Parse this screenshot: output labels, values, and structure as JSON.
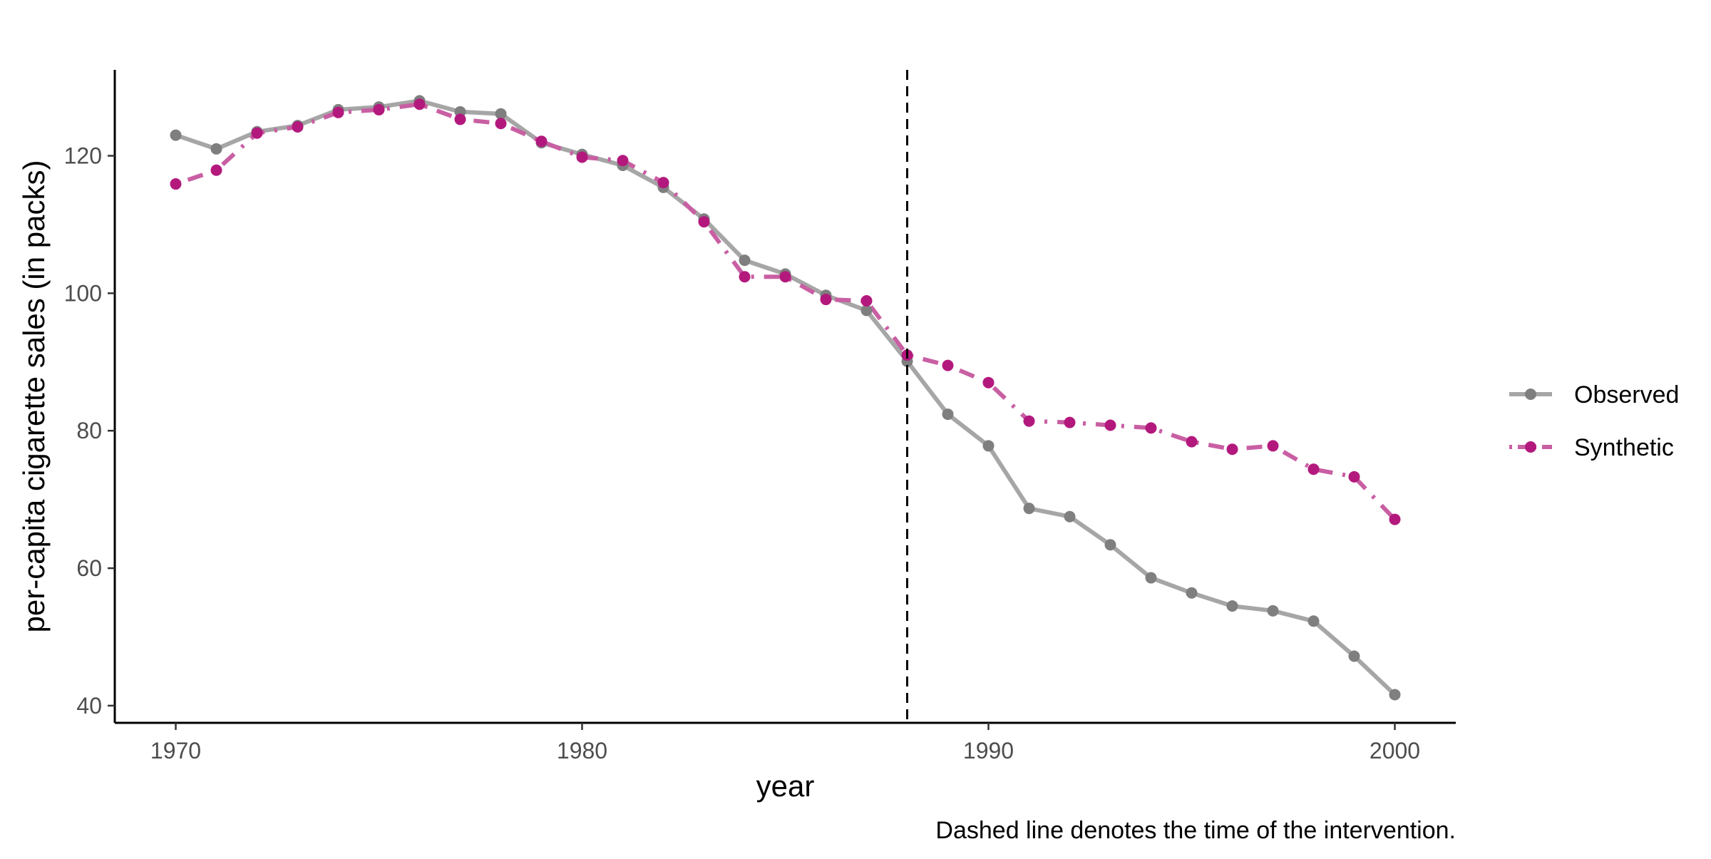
{
  "chart_data": {
    "type": "line",
    "title": "",
    "xlabel": "year",
    "ylabel": "per-capita cigarette sales (in packs)",
    "caption": "Dashed line denotes the time of the intervention.",
    "xlim": [
      1968.5,
      2001.5
    ],
    "ylim": [
      37.5,
      132.5
    ],
    "x_ticks": [
      1970,
      1980,
      1990,
      2000
    ],
    "y_ticks": [
      40,
      60,
      80,
      100,
      120
    ],
    "grid": false,
    "legend_position": "right",
    "intervention_year": 1988,
    "x": [
      1970,
      1971,
      1972,
      1973,
      1974,
      1975,
      1976,
      1977,
      1978,
      1979,
      1980,
      1981,
      1982,
      1983,
      1984,
      1985,
      1986,
      1987,
      1988,
      1989,
      1990,
      1991,
      1992,
      1993,
      1994,
      1995,
      1996,
      1997,
      1998,
      1999,
      2000
    ],
    "series": [
      {
        "name": "Observed",
        "color": "#7f7f7f",
        "line_color": "#a6a6a6",
        "line_style": "solid",
        "values": [
          123.0,
          121.0,
          123.5,
          124.4,
          126.7,
          127.1,
          128.0,
          126.4,
          126.1,
          121.9,
          120.2,
          118.6,
          115.4,
          110.8,
          104.8,
          102.8,
          99.7,
          97.5,
          90.1,
          82.4,
          77.8,
          68.7,
          67.5,
          63.4,
          58.6,
          56.4,
          54.5,
          53.8,
          52.3,
          47.2,
          41.6
        ]
      },
      {
        "name": "Synthetic",
        "color": "#b3197d",
        "line_color": "#c95fa3",
        "line_style": "dotdash",
        "values": [
          115.9,
          117.9,
          123.3,
          124.2,
          126.3,
          126.7,
          127.5,
          125.3,
          124.7,
          122.1,
          119.8,
          119.3,
          116.1,
          110.4,
          102.4,
          102.4,
          99.1,
          98.9,
          91.0,
          89.5,
          87.0,
          81.4,
          81.2,
          80.8,
          80.4,
          78.4,
          77.3,
          77.8,
          74.4,
          73.3,
          67.1
        ]
      }
    ]
  }
}
